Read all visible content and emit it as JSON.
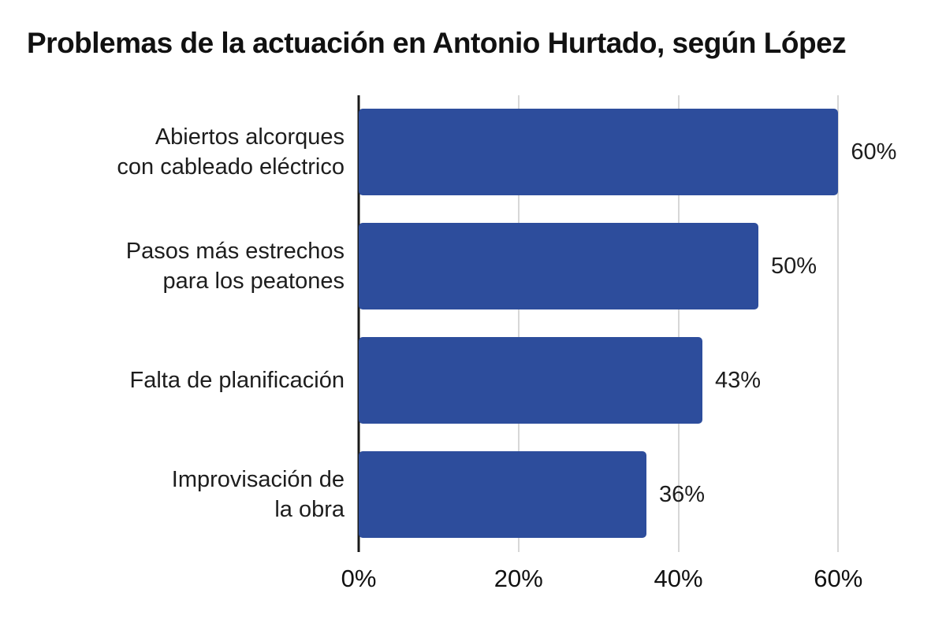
{
  "chart_data": {
    "type": "bar",
    "orientation": "horizontal",
    "title": "Problemas de la actuación en Antonio Hurtado, según López",
    "categories": [
      "Abiertos alcorques con cableado eléctrico",
      "Pasos más estrechos para los peatones",
      "Falta de planificación",
      "Improvisación de la obra"
    ],
    "values": [
      60,
      50,
      43,
      36
    ],
    "rows": [
      {
        "label": "Abiertos alcorques\ncon cableado eléctrico",
        "value": 60,
        "value_label": "60%"
      },
      {
        "label": "Pasos más estrechos\npara los peatones",
        "value": 50,
        "value_label": "50%"
      },
      {
        "label": "Falta de planificación",
        "value": 43,
        "value_label": "43%"
      },
      {
        "label": "Improvisación de\nla obra",
        "value": 36,
        "value_label": "36%"
      }
    ],
    "xlabel": "",
    "ylabel": "",
    "xlim": [
      0,
      72
    ],
    "x_ticks": [
      {
        "value": 0,
        "label": "0%"
      },
      {
        "value": 20,
        "label": "20%"
      },
      {
        "value": 40,
        "label": "40%"
      },
      {
        "value": 60,
        "label": "60%"
      }
    ],
    "grid": true,
    "legend": false,
    "colors": {
      "bar": "#2d4d9c",
      "gridline": "#d7d7d7",
      "axis": "#1a1a1a",
      "text": "#1d1d1d"
    }
  }
}
